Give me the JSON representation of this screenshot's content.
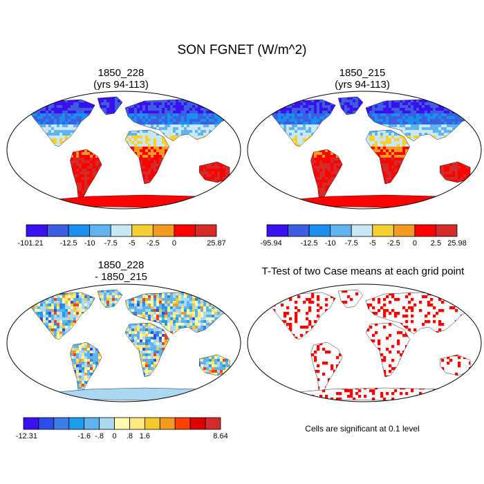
{
  "figure": {
    "title": "SON FGNET (W/m^2)"
  },
  "panels": [
    {
      "id": "p1",
      "title_line1": "1850_228",
      "title_line2": "(yrs 94-113)",
      "colorbar": {
        "colors": [
          "#3a10f0",
          "#3c5ee0",
          "#1a8ff0",
          "#5fb4f0",
          "#c9e8f5",
          "#f5d030",
          "#f59a20",
          "#ff0000",
          "#d42a2a"
        ],
        "labels": [
          "-101.21",
          "-12.5",
          "-10",
          "-7.5",
          "-5",
          "-2.5",
          "0",
          "25.87"
        ]
      }
    },
    {
      "id": "p2",
      "title_line1": "1850_215",
      "title_line2": "(yrs 94-113)",
      "colorbar": {
        "colors": [
          "#3a10f0",
          "#3c5ee0",
          "#1a8ff0",
          "#5fb4f0",
          "#c9e8f5",
          "#f5d030",
          "#f59a20",
          "#ff0000",
          "#d42a2a"
        ],
        "labels": [
          "-95.94",
          "-12.5",
          "-10",
          "-7.5",
          "-5",
          "-2.5",
          "0",
          "2.5",
          "25.98"
        ]
      }
    },
    {
      "id": "p3",
      "title_line1": "1850_228",
      "title_line2": "- 1850_215",
      "colorbar": {
        "colors": [
          "#3a10f0",
          "#2d4de6",
          "#3a7fe8",
          "#1e9cf0",
          "#5fb4f0",
          "#aad8f2",
          "#fffbb0",
          "#ffe880",
          "#f5c830",
          "#f59a20",
          "#ff4000",
          "#e00000",
          "#d42a2a"
        ],
        "labels": [
          "-12.31",
          "-1.6",
          "-.8",
          "0",
          ".8",
          "1.6",
          "8.64"
        ]
      }
    },
    {
      "id": "p4",
      "title_line1": "T-Test of two Case means at each grid point",
      "footnote": "Cells are significant at 0.1 level"
    }
  ]
}
